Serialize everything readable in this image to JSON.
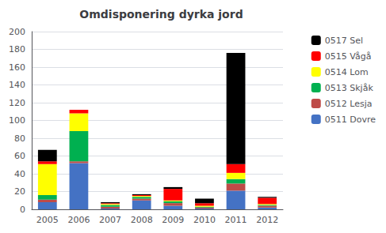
{
  "chart_data": {
    "type": "bar",
    "title": "Omdisponering dyrka jord",
    "categories": [
      2005,
      2006,
      2007,
      2008,
      2009,
      2010,
      2011,
      2012
    ],
    "series": [
      {
        "name": "0511 Dovre",
        "color": "#4472C4",
        "values": [
          8,
          52,
          1,
          10,
          4,
          1,
          21,
          2
        ]
      },
      {
        "name": "0512 Lesja",
        "color": "#BE4B48",
        "values": [
          3,
          2,
          2,
          2,
          3,
          1,
          8,
          2
        ]
      },
      {
        "name": "0513 Skjåk",
        "color": "#00B050",
        "values": [
          5,
          34,
          2,
          2,
          2,
          1,
          5,
          1
        ]
      },
      {
        "name": "0514 Lom",
        "color": "#FFFF00",
        "values": [
          35,
          20,
          1,
          1,
          1,
          1,
          7,
          1
        ]
      },
      {
        "name": "0515 Vågå",
        "color": "#FF0000",
        "values": [
          3,
          4,
          1,
          1,
          13,
          3,
          10,
          7
        ]
      },
      {
        "name": "0517 Sel",
        "color": "#000000",
        "values": [
          13,
          0,
          1,
          1,
          2,
          5,
          125,
          1
        ]
      }
    ],
    "stacked": true,
    "ylim": [
      0,
      200
    ],
    "yticks": [
      0,
      20,
      40,
      60,
      80,
      100,
      120,
      140,
      160,
      180,
      200
    ],
    "grid": true,
    "legend": "right"
  }
}
